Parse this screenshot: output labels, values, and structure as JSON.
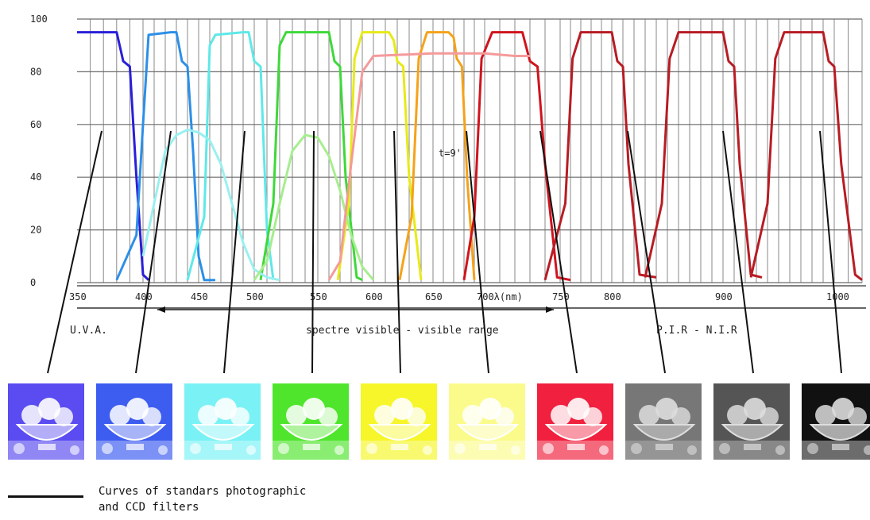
{
  "chart_data": {
    "type": "line",
    "title": "",
    "xlabel": "λ(nm)",
    "ylabel": "",
    "x_ticks": [
      350,
      400,
      450,
      500,
      550,
      600,
      650,
      700,
      750,
      800,
      900,
      1000
    ],
    "x_tick_labels": [
      "350",
      "400",
      "450",
      "500",
      "550",
      "600",
      "650",
      "700λ(nm)",
      "750",
      "800",
      "900",
      "1000"
    ],
    "y_ticks": [
      0,
      20,
      40,
      60,
      80,
      100
    ],
    "y_tick_labels": [
      "0",
      "20",
      "40",
      "60",
      "80",
      "100"
    ],
    "ylim": [
      0,
      100
    ],
    "grid": true,
    "annotation": "t=9'",
    "series": [
      {
        "color": "#2a1fd8",
        "x": [
          350,
          375,
          380,
          385,
          390,
          395,
          400,
          405
        ],
        "y": [
          95,
          95,
          95,
          84,
          82,
          40,
          3,
          1
        ]
      },
      {
        "color": "#2c8fe8",
        "x": [
          380,
          395,
          400,
          405,
          425,
          430,
          435,
          440,
          445,
          450,
          455,
          465
        ],
        "y": [
          1,
          18,
          60,
          94,
          95,
          95,
          84,
          82,
          50,
          10,
          1,
          1
        ]
      },
      {
        "color": "#5fe8e8",
        "x": [
          440,
          455,
          460,
          465,
          490,
          495,
          500,
          505,
          510,
          515
        ],
        "y": [
          1,
          25,
          90,
          94,
          95,
          95,
          84,
          82,
          20,
          1
        ]
      },
      {
        "color": "#3fd83a",
        "x": [
          505,
          515,
          520,
          525,
          555,
          560,
          565,
          570,
          575,
          585,
          590
        ],
        "y": [
          1,
          30,
          90,
          95,
          95,
          95,
          84,
          82,
          40,
          2,
          1
        ]
      },
      {
        "color": "#e7ea18",
        "x": [
          568,
          578,
          583,
          590,
          613,
          617,
          620,
          625,
          630,
          640
        ],
        "y": [
          1,
          30,
          85,
          95,
          95,
          92,
          84,
          82,
          40,
          1
        ]
      },
      {
        "color": "#f5a21a",
        "x": [
          622,
          632,
          638,
          645,
          665,
          670,
          673,
          678,
          683,
          690
        ],
        "y": [
          1,
          25,
          85,
          95,
          95,
          93,
          85,
          82,
          40,
          1
        ]
      },
      {
        "color": "#d0141e",
        "x": [
          680,
          690,
          697,
          705,
          720,
          725,
          730,
          735,
          740,
          748,
          760
        ],
        "y": [
          1,
          25,
          85,
          95,
          95,
          95,
          84,
          82,
          45,
          2,
          1
        ]
      },
      {
        "color": "#b81c24",
        "x": [
          740,
          755,
          762,
          770,
          795,
          800,
          805,
          810,
          815,
          825,
          840
        ],
        "y": [
          1,
          30,
          85,
          95,
          95,
          95,
          84,
          82,
          45,
          3,
          2
        ]
      },
      {
        "color": "#b81c24",
        "x": [
          830,
          845,
          852,
          860,
          895,
          900,
          905,
          910,
          915,
          925,
          935
        ],
        "y": [
          2,
          30,
          85,
          95,
          95,
          95,
          84,
          82,
          45,
          3,
          2
        ]
      },
      {
        "color": "#b81c24",
        "x": [
          925,
          940,
          947,
          955,
          985,
          990,
          995,
          1000,
          1005,
          1015,
          1025
        ],
        "y": [
          2,
          30,
          85,
          95,
          95,
          95,
          84,
          82,
          45,
          3,
          1
        ]
      },
      {
        "color": "#9af0f0",
        "x": [
          400,
          410,
          420,
          430,
          440,
          450,
          460,
          470,
          480,
          490,
          500,
          510,
          520
        ],
        "y": [
          10,
          30,
          50,
          56,
          58,
          57,
          54,
          45,
          30,
          15,
          5,
          2,
          1
        ]
      },
      {
        "color": "#a6ee8e",
        "x": [
          500,
          510,
          520,
          530,
          540,
          550,
          560,
          570,
          580,
          590,
          600
        ],
        "y": [
          1,
          8,
          30,
          50,
          56,
          55,
          48,
          35,
          18,
          6,
          1
        ]
      },
      {
        "color": "#f59a9a",
        "x": [
          560,
          570,
          580,
          590,
          600,
          650,
          700,
          720,
          730
        ],
        "y": [
          1,
          8,
          45,
          80,
          86,
          87,
          87,
          86,
          86
        ]
      }
    ],
    "ranges": [
      {
        "label": "U.V.A.",
        "from": 350,
        "to": 400
      },
      {
        "label": "spectre visible - visible range",
        "from": 400,
        "to": 750
      },
      {
        "label": "P.I.R - N.I.R",
        "from": 750,
        "to": 1000
      }
    ]
  },
  "samples": [
    {
      "color": "#5a4cf0"
    },
    {
      "color": "#3d5cf0"
    },
    {
      "color": "#7af2f5"
    },
    {
      "color": "#4fe52c"
    },
    {
      "color": "#f6f62a"
    },
    {
      "color": "#fbfb8c"
    },
    {
      "color": "#f0203e"
    },
    {
      "color": "#777777"
    },
    {
      "color": "#555555"
    },
    {
      "color": "#111111"
    }
  ],
  "legend": {
    "line1": "Curves of standars photographic",
    "line2": "and CCD filters"
  }
}
